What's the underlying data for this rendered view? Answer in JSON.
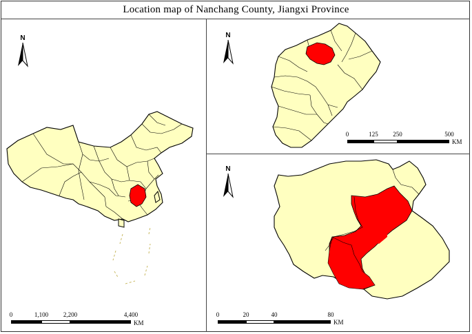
{
  "title": "Location map of Nanchang County, Jiangxi Province",
  "colors": {
    "base_fill": "#FFFFC0",
    "highlight_fill": "#FF0000",
    "outline": "#000000",
    "frame": "#444444"
  },
  "panels": {
    "china": {
      "north_label": "N",
      "scale": {
        "ticks": [
          "0",
          "1,100",
          "2,200",
          "4,400"
        ],
        "unit": "KM"
      },
      "highlight": "Jiangxi Province"
    },
    "jiangxi": {
      "north_label": "N",
      "scale": {
        "ticks": [
          "0",
          "125",
          "250",
          "500"
        ],
        "unit": "KM"
      },
      "highlight": "Nanchang"
    },
    "nanchang": {
      "north_label": "N",
      "scale": {
        "ticks": [
          "0",
          "20",
          "40",
          "80"
        ],
        "unit": "KM"
      },
      "highlight": "Nanchang County"
    }
  }
}
